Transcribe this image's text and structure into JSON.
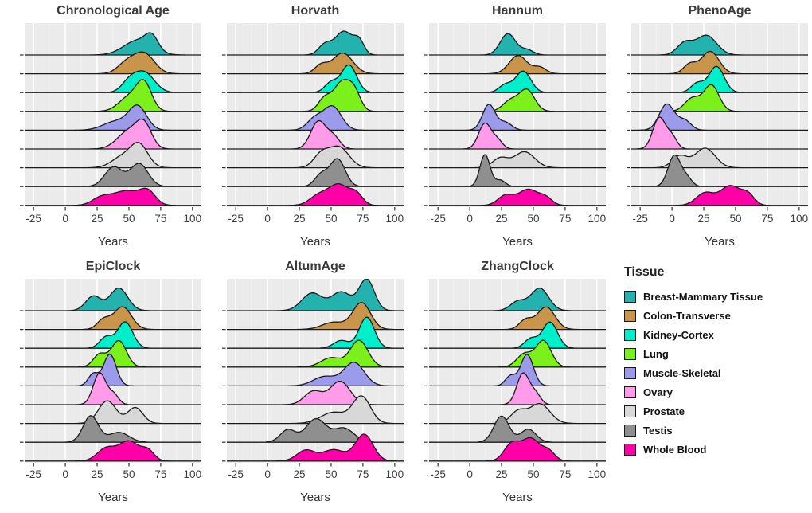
{
  "legend": {
    "title": "Tissue"
  },
  "axis": {
    "xlabel": "Years",
    "ticks": [
      -25,
      0,
      25,
      50,
      75,
      100
    ],
    "xlim": [
      -25,
      100
    ]
  },
  "style": {
    "panel_bg": "#EBEBEB",
    "grid_major": "#FFFFFF",
    "outline": "#1A1A1A",
    "title_color": "#3A3A3A",
    "tick_color": "#3B3B3B"
  },
  "chart_data": {
    "type": "area",
    "subtype": "ridgeline",
    "x_unit": "Years",
    "xlabel": "Years",
    "ylabel": "",
    "grid": "on",
    "legend_position": "right",
    "xlim": [
      -25,
      100
    ],
    "mode_format": "[center_years, sd_years, relative_weight] per density mode",
    "tissues": [
      {
        "key": "breast",
        "label": "Breast-Mammary Tissue",
        "color": "#23B2AE"
      },
      {
        "key": "colon",
        "label": "Colon-Transverse",
        "color": "#C8954B"
      },
      {
        "key": "kidney",
        "label": "Kidney-Cortex",
        "color": "#00EFCB"
      },
      {
        "key": "lung",
        "label": "Lung",
        "color": "#7CF01A"
      },
      {
        "key": "muscle",
        "label": "Muscle-Skeletal",
        "color": "#9C9BEB"
      },
      {
        "key": "ovary",
        "label": "Ovary",
        "color": "#FF9BE8"
      },
      {
        "key": "prostate",
        "label": "Prostate",
        "color": "#D8D8D8"
      },
      {
        "key": "testis",
        "label": "Testis",
        "color": "#8F8F8F"
      },
      {
        "key": "whole_blood",
        "label": "Whole Blood",
        "color": "#FF00A8"
      }
    ],
    "panels": [
      {
        "title": "Chronological Age",
        "ridges": {
          "breast": [
            [
              57,
              11,
              1
            ],
            [
              68,
              5,
              0.4
            ]
          ],
          "colon": [
            [
              62,
              8,
              1
            ],
            [
              48,
              7,
              0.45
            ]
          ],
          "kidney": [
            [
              62,
              8,
              1
            ],
            [
              50,
              6,
              0.35
            ]
          ],
          "lung": [
            [
              62,
              6,
              1
            ],
            [
              50,
              8,
              0.7
            ]
          ],
          "muscle": [
            [
              57,
              7,
              1
            ],
            [
              40,
              10,
              0.55
            ]
          ],
          "ovary": [
            [
              50,
              9,
              1
            ],
            [
              62,
              6,
              0.8
            ]
          ],
          "prostate": [
            [
              58,
              7,
              1
            ],
            [
              44,
              8,
              0.5
            ]
          ],
          "testis": [
            [
              38,
              7,
              0.85
            ],
            [
              58,
              7,
              1
            ]
          ],
          "whole_blood": [
            [
              48,
              11,
              1
            ],
            [
              65,
              6,
              0.45
            ],
            [
              28,
              7,
              0.3
            ]
          ]
        }
      },
      {
        "title": "Horvath",
        "ridges": {
          "breast": [
            [
              60,
              7,
              1
            ],
            [
              45,
              5,
              0.3
            ],
            [
              72,
              4,
              0.3
            ]
          ],
          "colon": [
            [
              59,
              8,
              1
            ],
            [
              42,
              5,
              0.25
            ]
          ],
          "kidney": [
            [
              64,
              6,
              1
            ],
            [
              50,
              5,
              0.3
            ]
          ],
          "lung": [
            [
              58,
              6,
              1
            ],
            [
              68,
              5,
              0.6
            ],
            [
              45,
              5,
              0.4
            ]
          ],
          "muscle": [
            [
              51,
              7,
              1
            ],
            [
              37,
              6,
              0.4
            ]
          ],
          "ovary": [
            [
              40,
              6,
              1
            ],
            [
              52,
              5,
              0.35
            ]
          ],
          "prostate": [
            [
              56,
              8,
              1
            ],
            [
              42,
              6,
              0.45
            ]
          ],
          "testis": [
            [
              55,
              6,
              1
            ],
            [
              42,
              5,
              0.35
            ]
          ],
          "whole_blood": [
            [
              56,
              8,
              1
            ],
            [
              40,
              7,
              0.4
            ],
            [
              70,
              5,
              0.3
            ]
          ]
        }
      },
      {
        "title": "Hannum",
        "ridges": {
          "breast": [
            [
              30,
              6,
              1
            ],
            [
              45,
              5,
              0.2
            ]
          ],
          "colon": [
            [
              38,
              7,
              1
            ],
            [
              55,
              5,
              0.25
            ]
          ],
          "kidney": [
            [
              42,
              6,
              1
            ],
            [
              28,
              5,
              0.3
            ]
          ],
          "lung": [
            [
              45,
              6,
              1
            ],
            [
              32,
              6,
              0.5
            ]
          ],
          "muscle": [
            [
              15,
              5,
              1
            ],
            [
              28,
              5,
              0.3
            ]
          ],
          "ovary": [
            [
              12,
              5,
              1
            ],
            [
              22,
              4,
              0.25
            ]
          ],
          "prostate": [
            [
              43,
              8,
              1
            ],
            [
              24,
              6,
              0.45
            ]
          ],
          "testis": [
            [
              12,
              4,
              1
            ],
            [
              24,
              4,
              0.2
            ]
          ],
          "whole_blood": [
            [
              46,
              8,
              1
            ],
            [
              28,
              6,
              0.45
            ],
            [
              60,
              5,
              0.25
            ]
          ]
        }
      },
      {
        "title": "PhenoAge",
        "ridges": {
          "breast": [
            [
              27,
              8,
              1
            ],
            [
              10,
              6,
              0.45
            ]
          ],
          "colon": [
            [
              30,
              7,
              1
            ],
            [
              14,
              5,
              0.3
            ]
          ],
          "kidney": [
            [
              35,
              6,
              1
            ],
            [
              20,
              5,
              0.3
            ]
          ],
          "lung": [
            [
              31,
              6,
              1
            ],
            [
              16,
              6,
              0.5
            ]
          ],
          "muscle": [
            [
              -4,
              6,
              1
            ],
            [
              10,
              5,
              0.3
            ]
          ],
          "ovary": [
            [
              -10,
              5,
              1
            ],
            [
              0,
              4,
              0.3
            ]
          ],
          "prostate": [
            [
              26,
              8,
              1
            ],
            [
              6,
              6,
              0.45
            ]
          ],
          "testis": [
            [
              2,
              5,
              1
            ],
            [
              12,
              4,
              0.2
            ]
          ],
          "whole_blood": [
            [
              46,
              8,
              1
            ],
            [
              26,
              7,
              0.55
            ],
            [
              60,
              5,
              0.3
            ]
          ]
        }
      },
      {
        "title": "EpiClock",
        "ridges": {
          "breast": [
            [
              42,
              7,
              1
            ],
            [
              22,
              6,
              0.55
            ]
          ],
          "colon": [
            [
              45,
              7,
              1
            ],
            [
              30,
              5,
              0.3
            ]
          ],
          "kidney": [
            [
              47,
              6,
              1
            ],
            [
              32,
              5,
              0.35
            ]
          ],
          "lung": [
            [
              42,
              6,
              1
            ],
            [
              27,
              5,
              0.4
            ]
          ],
          "muscle": [
            [
              35,
              5,
              1
            ],
            [
              22,
              4,
              0.3
            ]
          ],
          "ovary": [
            [
              27,
              5,
              1
            ],
            [
              38,
              4,
              0.25
            ]
          ],
          "prostate": [
            [
              33,
              7,
              1
            ],
            [
              55,
              6,
              0.6
            ]
          ],
          "testis": [
            [
              20,
              6,
              1
            ],
            [
              42,
              8,
              0.5
            ]
          ],
          "whole_blood": [
            [
              50,
              8,
              1
            ],
            [
              32,
              7,
              0.55
            ],
            [
              65,
              5,
              0.3
            ]
          ]
        }
      },
      {
        "title": "AltumAge",
        "ridges": {
          "breast": [
            [
              35,
              8,
              0.75
            ],
            [
              58,
              8,
              0.8
            ],
            [
              78,
              6,
              1
            ]
          ],
          "colon": [
            [
              74,
              7,
              1
            ],
            [
              52,
              9,
              0.35
            ]
          ],
          "kidney": [
            [
              78,
              6,
              1
            ],
            [
              58,
              6,
              0.25
            ]
          ],
          "lung": [
            [
              72,
              7,
              1
            ],
            [
              50,
              8,
              0.4
            ]
          ],
          "muscle": [
            [
              68,
              8,
              1
            ],
            [
              45,
              9,
              0.45
            ]
          ],
          "ovary": [
            [
              57,
              8,
              1
            ],
            [
              36,
              7,
              0.5
            ]
          ],
          "prostate": [
            [
              74,
              7,
              1
            ],
            [
              52,
              10,
              0.6
            ]
          ],
          "testis": [
            [
              38,
              8,
              1
            ],
            [
              60,
              8,
              0.6
            ],
            [
              16,
              6,
              0.4
            ]
          ],
          "whole_blood": [
            [
              76,
              7,
              1
            ],
            [
              52,
              9,
              0.55
            ],
            [
              30,
              7,
              0.4
            ]
          ]
        }
      },
      {
        "title": "ZhangClock",
        "ridges": {
          "breast": [
            [
              55,
              7,
              1
            ],
            [
              38,
              6,
              0.35
            ]
          ],
          "colon": [
            [
              60,
              7,
              1
            ],
            [
              44,
              5,
              0.3
            ]
          ],
          "kidney": [
            [
              63,
              6,
              1
            ],
            [
              48,
              5,
              0.3
            ]
          ],
          "lung": [
            [
              58,
              6,
              1
            ],
            [
              43,
              6,
              0.5
            ]
          ],
          "muscle": [
            [
              45,
              5,
              1
            ],
            [
              32,
              4,
              0.25
            ]
          ],
          "ovary": [
            [
              42,
              5,
              1
            ],
            [
              52,
              4,
              0.25
            ]
          ],
          "prostate": [
            [
              55,
              8,
              1
            ],
            [
              38,
              6,
              0.45
            ]
          ],
          "testis": [
            [
              25,
              6,
              1
            ],
            [
              46,
              6,
              0.5
            ]
          ],
          "whole_blood": [
            [
              48,
              7,
              1
            ],
            [
              33,
              6,
              0.65
            ],
            [
              62,
              5,
              0.3
            ]
          ]
        }
      }
    ]
  }
}
